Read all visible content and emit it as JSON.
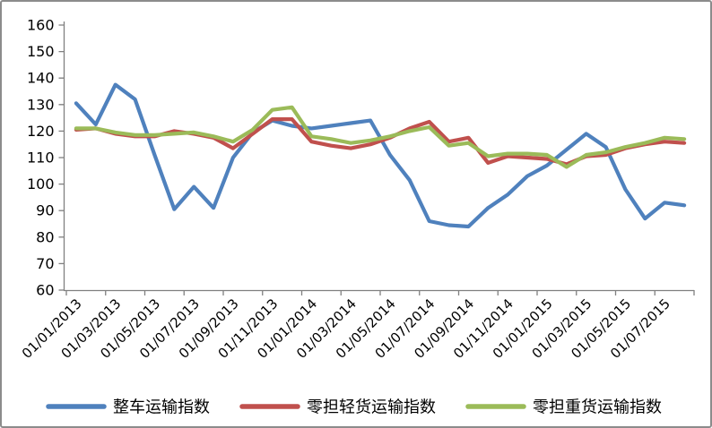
{
  "frame": {
    "background": "#FFFFFF",
    "border_color": "#8C8C8C"
  },
  "chart_data": {
    "type": "line",
    "title": "",
    "grid": "off",
    "plot_bg": "#FFFFFF",
    "axis_color": "#808080",
    "y_axis": {
      "min": 60,
      "max": 160,
      "step": 10,
      "tick_labels": [
        "60",
        "70",
        "80",
        "90",
        "100",
        "110",
        "120",
        "130",
        "140",
        "150",
        "160"
      ]
    },
    "x_axis": {
      "label_rotation_deg": 45,
      "labels_shown": [
        "01/01/2013",
        "01/03/2013",
        "01/05/2013",
        "01/07/2013",
        "01/09/2013",
        "01/11/2013",
        "01/01/2014",
        "01/03/2014",
        "01/05/2014",
        "01/07/2014",
        "01/09/2014",
        "01/11/2014",
        "01/01/2015",
        "01/03/2015",
        "01/05/2015",
        "01/07/2015"
      ]
    },
    "categories": [
      "01/01/2013",
      "01/02/2013",
      "01/03/2013",
      "01/04/2013",
      "01/05/2013",
      "01/06/2013",
      "01/07/2013",
      "01/08/2013",
      "01/09/2013",
      "01/10/2013",
      "01/11/2013",
      "01/12/2013",
      "01/01/2014",
      "01/02/2014",
      "01/03/2014",
      "01/04/2014",
      "01/05/2014",
      "01/06/2014",
      "01/07/2014",
      "01/08/2014",
      "01/09/2014",
      "01/10/2014",
      "01/11/2014",
      "01/12/2014",
      "01/01/2015",
      "01/02/2015",
      "01/03/2015",
      "01/04/2015",
      "01/05/2015",
      "01/06/2015",
      "01/07/2015",
      "01/08/2015"
    ],
    "series": [
      {
        "name": "整车运输指数",
        "color": "#4F81BD",
        "values": [
          130.5,
          122.5,
          137.5,
          132,
          111,
          90.5,
          99,
          91,
          110,
          119.5,
          124,
          122,
          121,
          122,
          123,
          124,
          111,
          101.5,
          86,
          84.5,
          84,
          91,
          96,
          103,
          107,
          113,
          119,
          114,
          98,
          87,
          93,
          92
        ]
      },
      {
        "name": "零担轻货运输指数",
        "color": "#C0504D",
        "values": [
          120.5,
          121,
          119,
          118,
          118,
          120,
          119,
          117.5,
          113.5,
          119,
          124.5,
          124.5,
          116,
          114.5,
          113.5,
          115,
          117.5,
          121,
          123.5,
          116,
          117.5,
          108,
          110.5,
          110,
          109.5,
          107.5,
          110.5,
          111,
          113.5,
          115,
          116,
          115.5
        ]
      },
      {
        "name": "零担重货运输指数",
        "color": "#9BBB59",
        "values": [
          121,
          121,
          119.5,
          118.5,
          118.5,
          119,
          119.5,
          118,
          116,
          120.5,
          128,
          129,
          118,
          117,
          115.5,
          116.5,
          118,
          120,
          121.5,
          114.5,
          115.5,
          110.5,
          111.5,
          111.5,
          111,
          106.5,
          111,
          112,
          114,
          115.5,
          117.5,
          117
        ]
      }
    ],
    "legend": {
      "position": "bottom",
      "entries": [
        "整车运输指数",
        "零担轻货运输指数",
        "零担重货运输指数"
      ]
    }
  }
}
